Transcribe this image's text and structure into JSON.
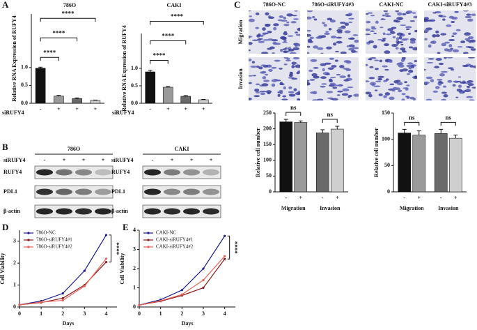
{
  "panel_labels": [
    "A",
    "B",
    "C",
    "D",
    "E"
  ],
  "blot": {
    "groups": [
      {
        "title": "786O",
        "treatment": "siRUFY4",
        "signs": [
          "-",
          "+",
          "+",
          "+"
        ],
        "rows": [
          "RUFY4",
          "PDL1",
          "β-actin"
        ]
      },
      {
        "title": "CAKI",
        "treatment": "siRUFY4",
        "signs": [
          "-",
          "+",
          "+",
          "+"
        ],
        "rows": [
          "RUFY4",
          "PDL1",
          "β-actin"
        ]
      }
    ]
  },
  "images": {
    "columns": [
      "786O-NC",
      "786O-siRUFY4#3",
      "CAKI-NC",
      "CAKI-siRUFY4#3"
    ],
    "rows": [
      "Migration",
      "Invasion"
    ]
  },
  "chart_data": [
    {
      "type": "bar",
      "title": "786O",
      "y_label": "Relative RNA Expression of RUFY4",
      "x_label": "siRUFY4",
      "categories": [
        "-",
        "+",
        "+",
        "+"
      ],
      "values": [
        0.98,
        0.2,
        0.13,
        0.08
      ],
      "errors": [
        0.03,
        0.02,
        0.02,
        0.01
      ],
      "colors": [
        "#111111",
        "#9a9a9a",
        "#6a6a6a",
        "#cfcfcf"
      ],
      "ylim": [
        0,
        2.5
      ],
      "yticks": [
        {
          "value": 0,
          "label": "0.0"
        },
        0.5,
        {
          "value": 1,
          "label": "1.0"
        }
      ],
      "annotations": [
        "****",
        "****",
        "****"
      ]
    },
    {
      "type": "bar",
      "title": "CAKI",
      "y_label": "Relative RNA Expression of RUFY4",
      "x_label": "siRUFY4",
      "categories": [
        "-",
        "+",
        "+",
        "+"
      ],
      "values": [
        0.9,
        0.46,
        0.2,
        0.1
      ],
      "errors": [
        0.05,
        0.02,
        0.02,
        0.01
      ],
      "colors": [
        "#111111",
        "#9a9a9a",
        "#6a6a6a",
        "#cfcfcf"
      ],
      "ylim": [
        0,
        2
      ],
      "yticks": [
        {
          "value": 0,
          "label": "0.0"
        },
        0.5,
        {
          "value": 1,
          "label": "1.0"
        }
      ],
      "annotations": [
        "****",
        "****",
        "****"
      ]
    },
    {
      "type": "bar",
      "y_label": "Relative cell number",
      "categories": [
        "-",
        "+",
        "-",
        "+"
      ],
      "group_labels": [
        "Migration",
        "Invasion"
      ],
      "values": [
        222,
        220,
        187,
        199
      ],
      "errors": [
        8,
        5,
        10,
        9
      ],
      "colors": [
        "#111111",
        "#9a9a9a",
        "#6a6a6a",
        "#cfcfcf"
      ],
      "ylim": [
        0,
        250
      ],
      "yticks": [
        0,
        50,
        100,
        150,
        200,
        250
      ],
      "annotations": [
        "ns",
        "ns"
      ]
    },
    {
      "type": "bar",
      "y_label": "Relative cell number",
      "categories": [
        "-",
        "+",
        "-",
        "+"
      ],
      "group_labels": [
        "Migration",
        "Invasion"
      ],
      "values": [
        112,
        108,
        111,
        102
      ],
      "errors": [
        7,
        8,
        8,
        6
      ],
      "colors": [
        "#111111",
        "#9a9a9a",
        "#6a6a6a",
        "#cfcfcf"
      ],
      "ylim": [
        0,
        150
      ],
      "yticks": [
        0,
        50,
        100,
        150
      ],
      "annotations": [
        "ns",
        "ns"
      ]
    },
    {
      "type": "line",
      "x_label": "Days",
      "y_label": "Cell Viability",
      "x": [
        0,
        1,
        2,
        3,
        4
      ],
      "series": [
        {
          "name": "786O-NC",
          "color": "#1a1a8c",
          "values": [
            0.1,
            0.27,
            0.62,
            1.65,
            3.28
          ]
        },
        {
          "name": "786O-siRUFY4#1",
          "color": "#8b1a1a",
          "values": [
            0.1,
            0.2,
            0.4,
            1.0,
            2.05
          ]
        },
        {
          "name": "786O-siRUFY4#2",
          "color": "#e8625a",
          "values": [
            0.1,
            0.22,
            0.3,
            0.95,
            2.2
          ]
        }
      ],
      "xlim": [
        0,
        4.5
      ],
      "xticks": [
        0,
        1,
        2,
        3,
        4
      ],
      "ylim": [
        0,
        3.5
      ],
      "yticks": [
        0,
        1,
        2,
        3
      ],
      "annotations": [
        "****"
      ]
    },
    {
      "type": "line",
      "x_label": "Days",
      "y_label": "Cell Viability",
      "x": [
        0,
        1,
        2,
        3,
        4
      ],
      "series": [
        {
          "name": "CAKI-NC",
          "color": "#1a1a8c",
          "values": [
            0.1,
            0.38,
            0.88,
            2.0,
            3.7
          ]
        },
        {
          "name": "CAKI-siRUFY4#1",
          "color": "#8b1a1a",
          "values": [
            0.1,
            0.3,
            0.6,
            1.0,
            2.5
          ]
        },
        {
          "name": "CAKI-siRUFY4#2",
          "color": "#e8625a",
          "values": [
            0.1,
            0.32,
            0.65,
            1.4,
            2.65
          ]
        }
      ],
      "xlim": [
        0,
        4.5
      ],
      "xticks": [
        0,
        1,
        2,
        3,
        4
      ],
      "ylim": [
        0,
        4
      ],
      "yticks": [
        0,
        1,
        2,
        3,
        4
      ],
      "annotations": [
        "****"
      ]
    }
  ]
}
